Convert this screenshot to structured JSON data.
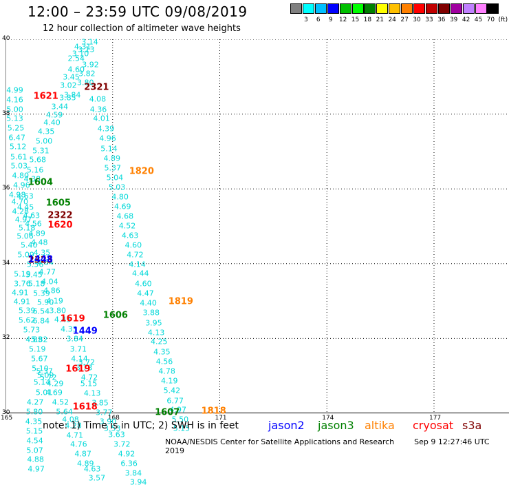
{
  "header": {
    "title": "12:00 – 23:59 UTC 09/08/2019",
    "subtitle": "12 hour collection of altimeter wave heights"
  },
  "color_scale": {
    "labels": [
      "3",
      "6",
      "9",
      "12",
      "15",
      "18",
      "21",
      "24",
      "27",
      "30",
      "33",
      "36",
      "39",
      "42",
      "45",
      "70",
      "(ft)"
    ],
    "colors": [
      "#808080",
      "#00ffff",
      "#00bfff",
      "#0000ff",
      "#00c000",
      "#00ff00",
      "#008000",
      "#ffff00",
      "#ffc000",
      "#ff8000",
      "#ff0000",
      "#c00000",
      "#800000",
      "#a000a0",
      "#c080ff",
      "#ff80ff",
      "#000000"
    ]
  },
  "map": {
    "lat_labels": [
      "40",
      "38",
      "36",
      "34",
      "32",
      "30"
    ],
    "lon_labels": [
      "165",
      "168",
      "171",
      "174",
      "177"
    ],
    "lat_range": [
      30,
      40
    ],
    "lon_range": [
      165,
      179.1
    ],
    "grid": true
  },
  "time_labels": [
    {
      "text": "2321",
      "lon": 167.55,
      "lat": 38.72,
      "color": "#800000"
    },
    {
      "text": "1621",
      "lon": 166.13,
      "lat": 38.47,
      "color": "#ff0000"
    },
    {
      "text": "1820",
      "lon": 168.81,
      "lat": 36.47,
      "color": "#ff8000"
    },
    {
      "text": "1604",
      "lon": 165.98,
      "lat": 36.17,
      "color": "#008000"
    },
    {
      "text": "1605",
      "lon": 166.48,
      "lat": 35.62,
      "color": "#008000"
    },
    {
      "text": "2322",
      "lon": 166.53,
      "lat": 35.29,
      "color": "#800000"
    },
    {
      "text": "1620",
      "lon": 166.53,
      "lat": 35.03,
      "color": "#ff0000"
    },
    {
      "text": "2323",
      "lon": 165.98,
      "lat": 34.08,
      "color": "#800000"
    },
    {
      "text": "1448",
      "lon": 165.98,
      "lat": 34.1,
      "color": "#0000ff"
    },
    {
      "text": "1819",
      "lon": 169.91,
      "lat": 32.98,
      "color": "#ff8000"
    },
    {
      "text": "1606",
      "lon": 168.08,
      "lat": 32.62,
      "color": "#008000"
    },
    {
      "text": "1619",
      "lon": 166.88,
      "lat": 32.53,
      "color": "#ff0000"
    },
    {
      "text": "1449",
      "lon": 167.23,
      "lat": 32.19,
      "color": "#0000ff"
    },
    {
      "text": "1619",
      "lon": 167.03,
      "lat": 31.17,
      "color": "#ff0000"
    },
    {
      "text": "1618",
      "lon": 167.23,
      "lat": 30.16,
      "color": "#ff0000"
    },
    {
      "text": "1607",
      "lon": 169.53,
      "lat": 30.01,
      "color": "#008000"
    },
    {
      "text": "1818",
      "lon": 170.83,
      "lat": 30.05,
      "color": "#ff8000"
    }
  ],
  "wave_heights": [
    {
      "v": "3.14",
      "lon": 167.36,
      "lat": 39.93
    },
    {
      "v": "4.31",
      "lon": 167.16,
      "lat": 39.8
    },
    {
      "v": "3.13",
      "lon": 167.26,
      "lat": 39.72
    },
    {
      "v": "3.10",
      "lon": 167.1,
      "lat": 39.62
    },
    {
      "v": "2.54",
      "lon": 166.98,
      "lat": 39.48
    },
    {
      "v": "3.92",
      "lon": 167.38,
      "lat": 39.31
    },
    {
      "v": "4.60",
      "lon": 166.98,
      "lat": 39.19
    },
    {
      "v": "3.82",
      "lon": 167.28,
      "lat": 39.08
    },
    {
      "v": "3.45",
      "lon": 166.84,
      "lat": 38.98
    },
    {
      "v": "3.80",
      "lon": 167.24,
      "lat": 38.84
    },
    {
      "v": "3.02",
      "lon": 166.76,
      "lat": 38.76
    },
    {
      "v": "3.84",
      "lon": 166.87,
      "lat": 38.5
    },
    {
      "v": "3.85",
      "lon": 166.74,
      "lat": 38.43
    },
    {
      "v": "4.08",
      "lon": 167.58,
      "lat": 38.4
    },
    {
      "v": "3.44",
      "lon": 166.52,
      "lat": 38.2
    },
    {
      "v": "4.36",
      "lon": 167.6,
      "lat": 38.13
    },
    {
      "v": "4.59",
      "lon": 166.37,
      "lat": 37.98
    },
    {
      "v": "4.01",
      "lon": 167.69,
      "lat": 37.88
    },
    {
      "v": "4.40",
      "lon": 166.3,
      "lat": 37.78
    },
    {
      "v": "4.39",
      "lon": 167.81,
      "lat": 37.6
    },
    {
      "v": "4.35",
      "lon": 166.14,
      "lat": 37.53
    },
    {
      "v": "4.96",
      "lon": 167.86,
      "lat": 37.34
    },
    {
      "v": "5.00",
      "lon": 166.08,
      "lat": 37.28
    },
    {
      "v": "5.14",
      "lon": 167.9,
      "lat": 37.08
    },
    {
      "v": "5.31",
      "lon": 165.99,
      "lat": 37.02
    },
    {
      "v": "4.89",
      "lon": 167.98,
      "lat": 36.81
    },
    {
      "v": "5.68",
      "lon": 165.9,
      "lat": 36.77
    },
    {
      "v": "5.37",
      "lon": 168.0,
      "lat": 36.56
    },
    {
      "v": "5.16",
      "lon": 165.83,
      "lat": 36.51
    },
    {
      "v": "5.04",
      "lon": 168.06,
      "lat": 36.29
    },
    {
      "v": "4.38",
      "lon": 165.75,
      "lat": 36.26
    },
    {
      "v": "5.03",
      "lon": 168.12,
      "lat": 36.04
    },
    {
      "v": "4.80",
      "lon": 168.21,
      "lat": 35.79
    },
    {
      "v": "4.69",
      "lon": 168.28,
      "lat": 35.53
    },
    {
      "v": "4.68",
      "lon": 168.35,
      "lat": 35.26
    },
    {
      "v": "4.52",
      "lon": 168.41,
      "lat": 35.01
    },
    {
      "v": "4.63",
      "lon": 168.49,
      "lat": 34.75
    },
    {
      "v": "4.60",
      "lon": 168.58,
      "lat": 34.49
    },
    {
      "v": "4.72",
      "lon": 168.63,
      "lat": 34.23
    },
    {
      "v": "4.14",
      "lon": 168.69,
      "lat": 33.97
    },
    {
      "v": "4.44",
      "lon": 168.78,
      "lat": 33.73
    },
    {
      "v": "4.60",
      "lon": 168.86,
      "lat": 33.46
    },
    {
      "v": "4.47",
      "lon": 168.92,
      "lat": 33.21
    },
    {
      "v": "4.40",
      "lon": 169.0,
      "lat": 32.94
    },
    {
      "v": "3.88",
      "lon": 169.08,
      "lat": 32.68
    },
    {
      "v": "3.95",
      "lon": 169.15,
      "lat": 32.42
    },
    {
      "v": "4.13",
      "lon": 169.22,
      "lat": 32.16
    },
    {
      "v": "4.25",
      "lon": 169.3,
      "lat": 31.91
    },
    {
      "v": "4.35",
      "lon": 169.38,
      "lat": 31.64
    },
    {
      "v": "4.56",
      "lon": 169.45,
      "lat": 31.38
    },
    {
      "v": "4.78",
      "lon": 169.52,
      "lat": 31.12
    },
    {
      "v": "4.19",
      "lon": 169.59,
      "lat": 30.86
    },
    {
      "v": "5.42",
      "lon": 169.66,
      "lat": 30.6
    },
    {
      "v": "6.77",
      "lon": 169.75,
      "lat": 30.34
    },
    {
      "v": "4.97",
      "lon": 169.83,
      "lat": 30.09
    },
    {
      "v": "5.50",
      "lon": 169.89,
      "lat": 29.83
    },
    {
      "v": "5.15",
      "lon": 169.93,
      "lat": 29.6
    },
    {
      "v": "4.99",
      "lon": 165.26,
      "lat": 38.63
    },
    {
      "v": "4.16",
      "lon": 165.26,
      "lat": 38.38
    },
    {
      "v": "5.00",
      "lon": 165.26,
      "lat": 38.12
    },
    {
      "v": "5.13",
      "lon": 165.26,
      "lat": 37.88
    },
    {
      "v": "5.25",
      "lon": 165.29,
      "lat": 37.63
    },
    {
      "v": "6.47",
      "lon": 165.32,
      "lat": 37.37
    },
    {
      "v": "5.12",
      "lon": 165.35,
      "lat": 37.12
    },
    {
      "v": "5.61",
      "lon": 165.37,
      "lat": 36.86
    },
    {
      "v": "5.03",
      "lon": 165.38,
      "lat": 36.61
    },
    {
      "v": "4.80",
      "lon": 165.42,
      "lat": 36.35
    },
    {
      "v": "4.96",
      "lon": 165.45,
      "lat": 36.1
    },
    {
      "v": "4.98",
      "lon": 165.33,
      "lat": 35.83
    },
    {
      "v": "4.63",
      "lon": 165.55,
      "lat": 35.8
    },
    {
      "v": "4.70",
      "lon": 165.4,
      "lat": 35.66
    },
    {
      "v": "4.45",
      "lon": 165.56,
      "lat": 35.5
    },
    {
      "v": "4.28",
      "lon": 165.42,
      "lat": 35.4
    },
    {
      "v": "4.63",
      "lon": 165.73,
      "lat": 35.28
    },
    {
      "v": "4.97",
      "lon": 165.5,
      "lat": 35.18
    },
    {
      "v": "4.56",
      "lon": 165.78,
      "lat": 35.06
    },
    {
      "v": "5.18",
      "lon": 165.6,
      "lat": 34.95
    },
    {
      "v": "4.89",
      "lon": 165.88,
      "lat": 34.8
    },
    {
      "v": "5.06",
      "lon": 165.55,
      "lat": 34.74
    },
    {
      "v": "4.48",
      "lon": 165.95,
      "lat": 34.56
    },
    {
      "v": "5.40",
      "lon": 165.66,
      "lat": 34.5
    },
    {
      "v": "4.35",
      "lon": 166.02,
      "lat": 34.3
    },
    {
      "v": "5.09",
      "lon": 165.57,
      "lat": 34.24
    },
    {
      "v": "4.64",
      "lon": 166.11,
      "lat": 34.03
    },
    {
      "v": "5.56",
      "lon": 165.83,
      "lat": 33.98
    },
    {
      "v": "4.77",
      "lon": 166.17,
      "lat": 33.77
    },
    {
      "v": "5.19",
      "lon": 165.47,
      "lat": 33.72
    },
    {
      "v": "5.45",
      "lon": 165.8,
      "lat": 33.7
    },
    {
      "v": "4.04",
      "lon": 166.24,
      "lat": 33.52
    },
    {
      "v": "3.76",
      "lon": 165.47,
      "lat": 33.47
    },
    {
      "v": "5.18",
      "lon": 165.87,
      "lat": 33.46
    },
    {
      "v": "4.86",
      "lon": 166.3,
      "lat": 33.27
    },
    {
      "v": "4.91",
      "lon": 165.41,
      "lat": 33.23
    },
    {
      "v": "5.39",
      "lon": 166.01,
      "lat": 33.21
    },
    {
      "v": "4.19",
      "lon": 166.38,
      "lat": 33.0
    },
    {
      "v": "4.91",
      "lon": 165.46,
      "lat": 32.98
    },
    {
      "v": "5.90",
      "lon": 166.12,
      "lat": 32.97
    },
    {
      "v": "3.80",
      "lon": 166.46,
      "lat": 32.74
    },
    {
      "v": "5.39",
      "lon": 165.6,
      "lat": 32.74
    },
    {
      "v": "6.54",
      "lon": 166.0,
      "lat": 32.72
    },
    {
      "v": "4.45",
      "lon": 166.6,
      "lat": 32.5
    },
    {
      "v": "5.62",
      "lon": 165.6,
      "lat": 32.49
    },
    {
      "v": "6.84",
      "lon": 166.0,
      "lat": 32.47
    },
    {
      "v": "4.33",
      "lon": 166.78,
      "lat": 32.24
    },
    {
      "v": "5.73",
      "lon": 165.73,
      "lat": 32.23
    },
    {
      "v": "3.84",
      "lon": 166.94,
      "lat": 31.98
    },
    {
      "v": "4.83",
      "lon": 165.8,
      "lat": 31.97
    },
    {
      "v": "5.82",
      "lon": 165.95,
      "lat": 31.97
    },
    {
      "v": "3.71",
      "lon": 167.04,
      "lat": 31.72
    },
    {
      "v": "5.19",
      "lon": 165.89,
      "lat": 31.71
    },
    {
      "v": "4.14",
      "lon": 167.07,
      "lat": 31.46
    },
    {
      "v": "5.67",
      "lon": 165.95,
      "lat": 31.46
    },
    {
      "v": "3.72",
      "lon": 167.27,
      "lat": 31.36
    },
    {
      "v": "3.73",
      "lon": 167.2,
      "lat": 31.21
    },
    {
      "v": "5.10",
      "lon": 165.97,
      "lat": 31.2
    },
    {
      "v": "5.37",
      "lon": 166.09,
      "lat": 31.13
    },
    {
      "v": "5.09",
      "lon": 166.12,
      "lat": 31.01
    },
    {
      "v": "5.72",
      "lon": 166.2,
      "lat": 30.95
    },
    {
      "v": "4.72",
      "lon": 167.35,
      "lat": 30.95
    },
    {
      "v": "5.14",
      "lon": 166.02,
      "lat": 30.82
    },
    {
      "v": "4.29",
      "lon": 166.39,
      "lat": 30.8
    },
    {
      "v": "5.15",
      "lon": 167.33,
      "lat": 30.8
    },
    {
      "v": "5.01",
      "lon": 166.08,
      "lat": 30.56
    },
    {
      "v": "4.69",
      "lon": 166.36,
      "lat": 30.56
    },
    {
      "v": "4.13",
      "lon": 167.43,
      "lat": 30.53
    },
    {
      "v": "4.27",
      "lon": 165.83,
      "lat": 30.3
    },
    {
      "v": "4.52",
      "lon": 166.54,
      "lat": 30.3
    },
    {
      "v": "3.85",
      "lon": 167.65,
      "lat": 30.27
    },
    {
      "v": "5.80",
      "lon": 165.81,
      "lat": 30.04
    },
    {
      "v": "5.64",
      "lon": 166.65,
      "lat": 30.04
    },
    {
      "v": "3.77",
      "lon": 167.76,
      "lat": 30.01
    },
    {
      "v": "4.35",
      "lon": 165.79,
      "lat": 29.78
    },
    {
      "v": "4.08",
      "lon": 166.82,
      "lat": 29.84
    },
    {
      "v": "3.90",
      "lon": 167.87,
      "lat": 29.77
    },
    {
      "v": "4.28",
      "lon": 166.9,
      "lat": 29.67
    },
    {
      "v": "3.53",
      "lon": 167.99,
      "lat": 29.6
    },
    {
      "v": "5.15",
      "lon": 165.81,
      "lat": 29.52
    },
    {
      "v": "4.71",
      "lon": 166.94,
      "lat": 29.41
    },
    {
      "v": "3.63",
      "lon": 168.11,
      "lat": 29.43
    },
    {
      "v": "4.54",
      "lon": 165.82,
      "lat": 29.26
    },
    {
      "v": "4.76",
      "lon": 167.05,
      "lat": 29.17
    },
    {
      "v": "3.72",
      "lon": 168.26,
      "lat": 29.17
    },
    {
      "v": "5.07",
      "lon": 165.82,
      "lat": 29.01
    },
    {
      "v": "4.87",
      "lon": 167.17,
      "lat": 28.92
    },
    {
      "v": "4.92",
      "lon": 168.39,
      "lat": 28.92
    },
    {
      "v": "4.88",
      "lon": 165.84,
      "lat": 28.76
    },
    {
      "v": "4.89",
      "lon": 167.24,
      "lat": 28.66
    },
    {
      "v": "6.36",
      "lon": 168.46,
      "lat": 28.66
    },
    {
      "v": "4.97",
      "lon": 165.86,
      "lat": 28.5
    },
    {
      "v": "4.63",
      "lon": 167.43,
      "lat": 28.5
    },
    {
      "v": "3.84",
      "lon": 168.58,
      "lat": 28.4
    },
    {
      "v": "3.57",
      "lon": 167.56,
      "lat": 28.26
    },
    {
      "v": "3.94",
      "lon": 168.72,
      "lat": 28.15
    }
  ],
  "note": "note:  1) Time is in UTC;  2) SWH is in feet",
  "satellites": [
    {
      "name": "jason2",
      "color": "#0000ff"
    },
    {
      "name": "jason3",
      "color": "#008000"
    },
    {
      "name": "altika",
      "color": "#ff8000"
    },
    {
      "name": "cryosat",
      "color": "#ff0000"
    },
    {
      "name": "s3a",
      "color": "#800000"
    }
  ],
  "credit": "NOAA/NESDIS Center for Satellite Applications and Research",
  "timestamp": "Sep  9 12:27:46 UTC 2019"
}
